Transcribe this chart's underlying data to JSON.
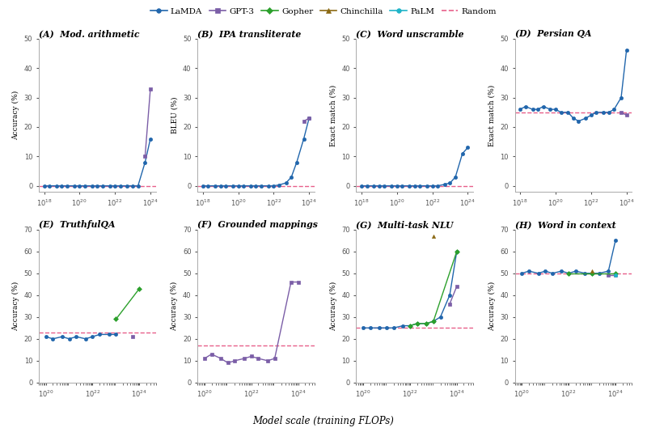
{
  "subplots": [
    {
      "label": "(A)  Mod. arithmetic",
      "ylabel": "Accuracy (%)",
      "ylim": [
        -2,
        50
      ],
      "yticks": [
        0,
        10,
        20,
        30,
        40,
        50
      ],
      "random_val": 0,
      "xlim": [
        5e+17,
        2e+24
      ],
      "xticks": [
        1e+18,
        1e+20,
        1e+22,
        1e+24
      ],
      "series": {
        "LaMDA": {
          "x": [
            1e+18,
            2e+18,
            5e+18,
            1e+19,
            2e+19,
            5e+19,
            1e+20,
            2e+20,
            5e+20,
            1e+21,
            2e+21,
            5e+21,
            1e+22,
            2e+22,
            5e+22,
            1e+23,
            2e+23,
            5e+23,
            1e+24
          ],
          "y": [
            0,
            0,
            0,
            0,
            0,
            0,
            0,
            0,
            0,
            0,
            0,
            0,
            0,
            0,
            0,
            0,
            0,
            8,
            16
          ]
        },
        "GPT-3": {
          "x": [
            5e+23,
            1e+24
          ],
          "y": [
            10,
            33
          ]
        }
      }
    },
    {
      "label": "(B)  IPA transliterate",
      "ylabel": "BLEU (%)",
      "ylim": [
        -2,
        50
      ],
      "yticks": [
        0,
        10,
        20,
        30,
        40,
        50
      ],
      "random_val": 0,
      "xlim": [
        5e+17,
        2e+24
      ],
      "xticks": [
        1e+18,
        1e+20,
        1e+22,
        1e+24
      ],
      "series": {
        "LaMDA": {
          "x": [
            1e+18,
            2e+18,
            5e+18,
            1e+19,
            2e+19,
            5e+19,
            1e+20,
            2e+20,
            5e+20,
            1e+21,
            2e+21,
            5e+21,
            1e+22,
            2e+22,
            5e+22,
            1e+23,
            2e+23,
            5e+23,
            1e+24
          ],
          "y": [
            0,
            0,
            0,
            0,
            0,
            0,
            0,
            0,
            0,
            0,
            0,
            0,
            0,
            0.3,
            1,
            3,
            8,
            16,
            23
          ]
        },
        "GPT-3": {
          "x": [
            5e+23,
            1e+24
          ],
          "y": [
            22,
            23
          ]
        }
      }
    },
    {
      "label": "(C)  Word unscramble",
      "ylabel": "Exact match (%)",
      "ylim": [
        -2,
        50
      ],
      "yticks": [
        0,
        10,
        20,
        30,
        40,
        50
      ],
      "random_val": 0,
      "xlim": [
        5e+17,
        2e+24
      ],
      "xticks": [
        1e+18,
        1e+20,
        1e+22,
        1e+24
      ],
      "series": {
        "LaMDA": {
          "x": [
            1e+18,
            2e+18,
            5e+18,
            1e+19,
            2e+19,
            5e+19,
            1e+20,
            2e+20,
            5e+20,
            1e+21,
            2e+21,
            5e+21,
            1e+22,
            2e+22,
            5e+22,
            1e+23,
            2e+23,
            5e+23,
            1e+24
          ],
          "y": [
            0,
            0,
            0,
            0,
            0,
            0,
            0,
            0,
            0,
            0,
            0,
            0,
            0,
            0,
            0.5,
            1,
            3,
            11,
            13
          ]
        }
      }
    },
    {
      "label": "(D)  Persian QA",
      "ylabel": "Exact match (%)",
      "ylim": [
        -2,
        50
      ],
      "yticks": [
        0,
        10,
        20,
        30,
        40,
        50
      ],
      "random_val": 25,
      "xlim": [
        5e+17,
        2e+24
      ],
      "xticks": [
        1e+18,
        1e+20,
        1e+22,
        1e+24
      ],
      "series": {
        "LaMDA": {
          "x": [
            1e+18,
            2e+18,
            5e+18,
            1e+19,
            2e+19,
            5e+19,
            1e+20,
            2e+20,
            5e+20,
            1e+21,
            2e+21,
            5e+21,
            1e+22,
            2e+22,
            5e+22,
            1e+23,
            2e+23,
            5e+23,
            1e+24
          ],
          "y": [
            26,
            27,
            26,
            26,
            27,
            26,
            26,
            25,
            25,
            23,
            22,
            23,
            24,
            25,
            25,
            25,
            26,
            30,
            46
          ]
        },
        "GPT-3": {
          "x": [
            5e+23,
            1e+24
          ],
          "y": [
            25,
            24
          ]
        }
      }
    },
    {
      "label": "(E)  TruthfulQA",
      "ylabel": "Accuracy (%)",
      "ylim": [
        0,
        70
      ],
      "yticks": [
        0,
        10,
        20,
        30,
        40,
        50,
        60,
        70
      ],
      "random_val": 23,
      "xlim": [
        5e+19,
        5e+24
      ],
      "xticks": [
        1e+20,
        1e+22,
        1e+24
      ],
      "series": {
        "LaMDA": {
          "x": [
            1e+20,
            2e+20,
            5e+20,
            1e+21,
            2e+21,
            5e+21,
            1e+22,
            2e+22,
            5e+22,
            1e+23
          ],
          "y": [
            21,
            20,
            21,
            20,
            21,
            20,
            21,
            22,
            22,
            22
          ]
        },
        "GPT-3": {
          "x": [
            5e+23
          ],
          "y": [
            21
          ]
        },
        "Gopher": {
          "x": [
            1e+23,
            1e+24
          ],
          "y": [
            29,
            43
          ]
        }
      }
    },
    {
      "label": "(F)  Grounded mappings",
      "ylabel": "Accuracy (%)",
      "ylim": [
        0,
        70
      ],
      "yticks": [
        0,
        10,
        20,
        30,
        40,
        50,
        60,
        70
      ],
      "random_val": 17,
      "xlim": [
        5e+19,
        5e+24
      ],
      "xticks": [
        1e+20,
        1e+22,
        1e+24
      ],
      "series": {
        "GPT-3": {
          "x": [
            1e+20,
            2e+20,
            5e+20,
            1e+21,
            2e+21,
            5e+21,
            1e+22,
            2e+22,
            5e+22,
            1e+23,
            5e+23,
            1e+24
          ],
          "y": [
            11,
            13,
            11,
            9,
            10,
            11,
            12,
            11,
            10,
            11,
            46,
            46
          ]
        }
      }
    },
    {
      "label": "(G)  Multi-task NLU",
      "ylabel": "Accuracy (%)",
      "ylim": [
        0,
        70
      ],
      "yticks": [
        0,
        10,
        20,
        30,
        40,
        50,
        60,
        70
      ],
      "random_val": 25,
      "xlim": [
        5e+19,
        5e+24
      ],
      "xticks": [
        1e+20,
        1e+22,
        1e+24
      ],
      "series": {
        "LaMDA": {
          "x": [
            1e+20,
            2e+20,
            5e+20,
            1e+21,
            2e+21,
            5e+21,
            1e+22,
            2e+22,
            5e+22,
            1e+23,
            2e+23,
            5e+23,
            1e+24
          ],
          "y": [
            25,
            25,
            25,
            25,
            25,
            26,
            26,
            27,
            27,
            28,
            30,
            40,
            60
          ]
        },
        "GPT-3": {
          "x": [
            5e+23,
            1e+24
          ],
          "y": [
            36,
            44
          ]
        },
        "Gopher": {
          "x": [
            1e+22,
            2e+22,
            5e+22,
            1e+23,
            1e+24
          ],
          "y": [
            26,
            27,
            27,
            28,
            60
          ]
        },
        "Chinchilla": {
          "x": [
            1e+23
          ],
          "y": [
            67
          ]
        }
      }
    },
    {
      "label": "(H)  Word in context",
      "ylabel": "Accuracy (%)",
      "ylim": [
        0,
        70
      ],
      "yticks": [
        0,
        10,
        20,
        30,
        40,
        50,
        60,
        70
      ],
      "random_val": 50,
      "xlim": [
        5e+19,
        5e+24
      ],
      "xticks": [
        1e+20,
        1e+22,
        1e+24
      ],
      "series": {
        "LaMDA": {
          "x": [
            1e+20,
            2e+20,
            5e+20,
            1e+21,
            2e+21,
            5e+21,
            1e+22,
            2e+22,
            5e+22,
            1e+23,
            2e+23,
            5e+23,
            1e+24
          ],
          "y": [
            50,
            51,
            50,
            51,
            50,
            51,
            50,
            51,
            50,
            50,
            50,
            51,
            65
          ]
        },
        "GPT-3": {
          "x": [
            5e+23,
            1e+24
          ],
          "y": [
            49,
            49
          ]
        },
        "Gopher": {
          "x": [
            1e+22,
            1e+23,
            1e+24
          ],
          "y": [
            50,
            50,
            50
          ]
        },
        "Chinchilla": {
          "x": [
            1e+23
          ],
          "y": [
            51
          ]
        },
        "PaLM": {
          "x": [
            1e+24
          ],
          "y": [
            49
          ]
        }
      }
    }
  ],
  "xlabel": "Model scale (training FLOPs)",
  "colors": {
    "LaMDA": "#2166ac",
    "GPT-3": "#7b5ea7",
    "Gopher": "#2ca02c",
    "Chinchilla": "#8b6914",
    "PaLM": "#1fb4c8",
    "Random": "#e8608a"
  },
  "markers": {
    "LaMDA": "o",
    "GPT-3": "s",
    "Gopher": "D",
    "Chinchilla": "^",
    "PaLM": "o"
  }
}
